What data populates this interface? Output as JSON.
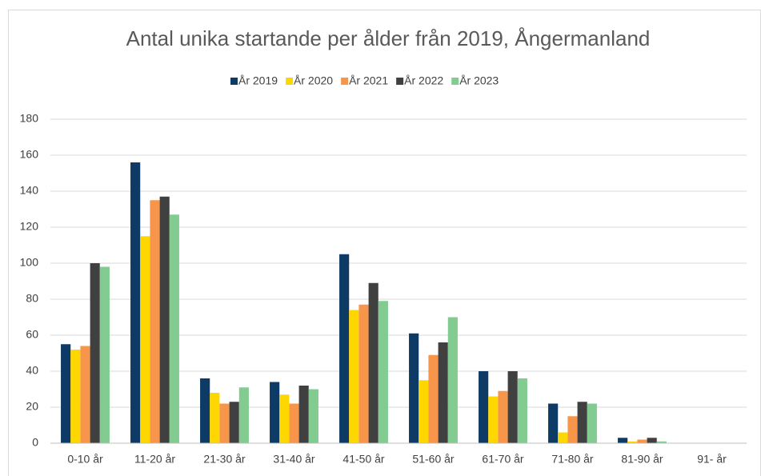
{
  "chart_data": {
    "type": "bar",
    "title": "Antal unika startande per ålder från 2019, Ångermanland",
    "categories": [
      "0-10 år",
      "11-20 år",
      "21-30 år",
      "31-40 år",
      "41-50 år",
      "51-60 år",
      "61-70 år",
      "71-80 år",
      "81-90 år",
      "91- år"
    ],
    "series": [
      {
        "name": "År 2019",
        "color": "#0e3a66",
        "values": [
          55,
          156,
          36,
          34,
          105,
          61,
          40,
          22,
          3,
          0
        ]
      },
      {
        "name": "År 2020",
        "color": "#ffd700",
        "values": [
          52,
          115,
          28,
          27,
          74,
          35,
          26,
          6,
          1,
          0
        ]
      },
      {
        "name": "År 2021",
        "color": "#f7964a",
        "values": [
          54,
          135,
          22,
          22,
          77,
          49,
          29,
          15,
          2,
          0
        ]
      },
      {
        "name": "År 2022",
        "color": "#404040",
        "values": [
          100,
          137,
          23,
          32,
          89,
          56,
          40,
          23,
          3,
          0
        ]
      },
      {
        "name": "År 2023",
        "color": "#82cc92",
        "values": [
          98,
          127,
          31,
          30,
          79,
          70,
          36,
          22,
          1,
          0
        ]
      }
    ],
    "ylim": [
      0,
      180
    ],
    "yticks": [
      0,
      20,
      40,
      60,
      80,
      100,
      120,
      140,
      160,
      180
    ],
    "grid": true,
    "legend": "top"
  }
}
